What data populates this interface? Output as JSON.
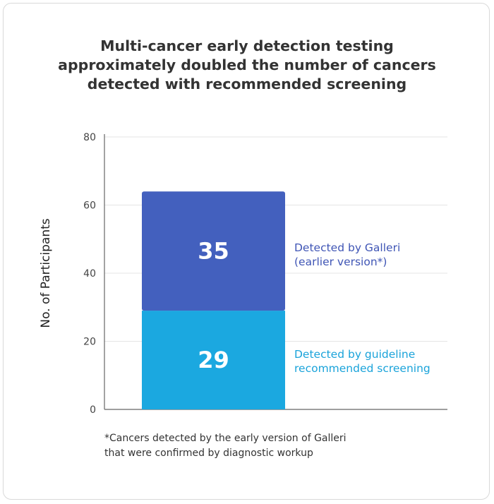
{
  "chart_data": {
    "type": "bar",
    "stacked": true,
    "title": "Multi-cancer early detection testing\napproximately doubled the number of cancers\ndetected with recommended screening",
    "ylabel": "No. of Participants",
    "xlabel": "",
    "ylim": [
      0,
      80
    ],
    "yticks": [
      "0",
      "20",
      "40",
      "60",
      "80"
    ],
    "grid": true,
    "series": [
      {
        "name": "Detected by guideline recommended screening",
        "label_lines": [
          "Detected by guideline",
          "recommended screening"
        ],
        "value": 29,
        "value_label": "29",
        "color": "#1ba8e0"
      },
      {
        "name": "Detected by Galleri (earlier version*)",
        "label_lines": [
          "Detected by Galleri",
          "(earlier version*)"
        ],
        "value": 35,
        "value_label": "35",
        "color": "#4360be"
      }
    ],
    "footnote": "*Cancers detected by the early version of Galleri\nthat were confirmed by diagnostic workup"
  }
}
